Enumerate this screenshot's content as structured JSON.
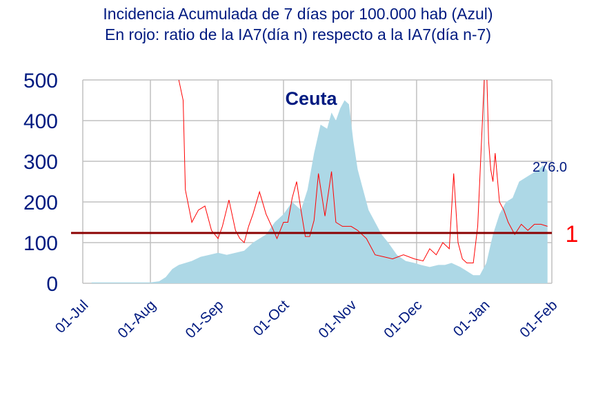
{
  "title_line1": "Incidencia Acumulada de 7 días por 100.000 hab (Azul)",
  "title_line2": "En rojo: ratio de la IA7(día n) respecto a la IA7(día n-7)",
  "chart_data": {
    "type": "area",
    "region_label": "Ceuta",
    "ylim": [
      0,
      500
    ],
    "yticks": [
      "0",
      "100",
      "200",
      "300",
      "400",
      "500"
    ],
    "xlim": [
      "2020-07-01",
      "2021-02-01"
    ],
    "xticks": [
      "01-Jul",
      "01-Aug",
      "01-Sep",
      "01-Oct",
      "01-Nov",
      "01-Dec",
      "01-Jan",
      "01-Feb"
    ],
    "grid": true,
    "last_value_label": "276.0",
    "reference_value": 1,
    "reference_label": "1",
    "colors": {
      "incidence_fill": "#add8e6",
      "ratio_line": "#ff0000",
      "reference_line": "#8b0000",
      "text": "#001a80",
      "grid": "#c0c0c0"
    },
    "series": [
      {
        "kind": "area",
        "color": "#add8e6",
        "x": [
          "2020-07-05",
          "2020-07-15",
          "2020-07-25",
          "2020-08-01",
          "2020-08-05",
          "2020-08-08",
          "2020-08-11",
          "2020-08-14",
          "2020-08-17",
          "2020-08-20",
          "2020-08-24",
          "2020-08-28",
          "2020-09-01",
          "2020-09-05",
          "2020-09-09",
          "2020-09-13",
          "2020-09-17",
          "2020-09-20",
          "2020-09-23",
          "2020-09-27",
          "2020-10-01",
          "2020-10-05",
          "2020-10-09",
          "2020-10-12",
          "2020-10-15",
          "2020-10-18",
          "2020-10-21",
          "2020-10-23",
          "2020-10-25",
          "2020-10-27",
          "2020-10-29",
          "2020-10-31",
          "2020-11-02",
          "2020-11-04",
          "2020-11-06",
          "2020-11-09",
          "2020-11-12",
          "2020-11-15",
          "2020-11-18",
          "2020-11-22",
          "2020-11-26",
          "2020-11-30",
          "2020-12-03",
          "2020-12-07",
          "2020-12-11",
          "2020-12-14",
          "2020-12-17",
          "2020-12-21",
          "2020-12-24",
          "2020-12-27",
          "2020-12-30",
          "2021-01-02",
          "2021-01-05",
          "2021-01-08",
          "2021-01-11",
          "2021-01-14",
          "2021-01-17",
          "2021-01-20",
          "2021-01-23",
          "2021-01-26",
          "2021-01-28",
          "2021-01-30"
        ],
        "y": [
          2,
          2,
          2,
          2,
          5,
          15,
          35,
          45,
          50,
          55,
          65,
          70,
          75,
          70,
          75,
          80,
          100,
          110,
          120,
          150,
          170,
          200,
          180,
          230,
          320,
          390,
          380,
          420,
          400,
          430,
          450,
          440,
          350,
          280,
          240,
          180,
          150,
          120,
          100,
          70,
          55,
          50,
          45,
          40,
          45,
          45,
          50,
          40,
          30,
          20,
          20,
          50,
          120,
          170,
          200,
          210,
          250,
          260,
          270,
          280,
          290,
          276
        ]
      },
      {
        "kind": "line",
        "color": "#ff0000",
        "x": [
          "2020-08-14",
          "2020-08-16",
          "2020-08-17",
          "2020-08-20",
          "2020-08-23",
          "2020-08-26",
          "2020-08-29",
          "2020-09-01",
          "2020-09-03",
          "2020-09-06",
          "2020-09-09",
          "2020-09-11",
          "2020-09-13",
          "2020-09-15",
          "2020-09-17",
          "2020-09-20",
          "2020-09-23",
          "2020-09-26",
          "2020-09-28",
          "2020-10-01",
          "2020-10-03",
          "2020-10-05",
          "2020-10-07",
          "2020-10-09",
          "2020-10-11",
          "2020-10-13",
          "2020-10-15",
          "2020-10-17",
          "2020-10-20",
          "2020-10-23",
          "2020-10-25",
          "2020-10-28",
          "2020-11-01",
          "2020-11-04",
          "2020-11-08",
          "2020-11-12",
          "2020-11-16",
          "2020-11-20",
          "2020-11-25",
          "2020-11-30",
          "2020-12-04",
          "2020-12-07",
          "2020-12-10",
          "2020-12-13",
          "2020-12-16",
          "2020-12-18",
          "2020-12-20",
          "2020-12-22",
          "2020-12-24",
          "2020-12-27",
          "2020-12-29",
          "2021-01-01",
          "2021-01-02",
          "2021-01-03",
          "2021-01-04",
          "2021-01-05",
          "2021-01-06",
          "2021-01-08",
          "2021-01-10",
          "2021-01-12",
          "2021-01-15",
          "2021-01-18",
          "2021-01-21",
          "2021-01-24",
          "2021-01-27",
          "2021-01-30"
        ],
        "y": [
          500,
          450,
          230,
          150,
          180,
          190,
          130,
          110,
          140,
          205,
          130,
          110,
          100,
          140,
          170,
          225,
          170,
          135,
          110,
          150,
          150,
          210,
          250,
          180,
          115,
          115,
          155,
          270,
          165,
          275,
          150,
          140,
          140,
          130,
          110,
          70,
          65,
          60,
          70,
          60,
          55,
          85,
          70,
          100,
          85,
          270,
          100,
          60,
          50,
          50,
          140,
          500,
          550,
          350,
          280,
          250,
          320,
          200,
          180,
          150,
          120,
          145,
          130,
          145,
          145,
          140
        ]
      }
    ]
  }
}
